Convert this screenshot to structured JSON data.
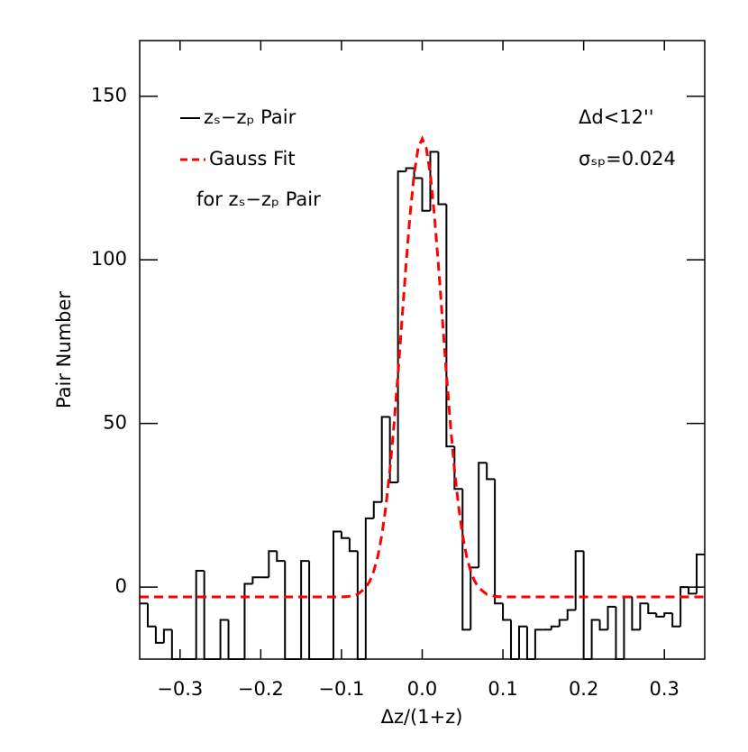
{
  "chart_data": {
    "type": "histogram",
    "xlabel": "Δz/(1+z)",
    "ylabel": "Pair Number",
    "xlim": [
      -0.35,
      0.35
    ],
    "ylim": [
      -22,
      167
    ],
    "xticks": [
      {
        "value": -0.3,
        "label": "−0.3"
      },
      {
        "value": -0.2,
        "label": "−0.2"
      },
      {
        "value": -0.1,
        "label": "−0.1"
      },
      {
        "value": 0,
        "label": "0.0"
      },
      0.1,
      0.2,
      0.3
    ],
    "yticks": [
      0,
      50,
      100,
      150
    ],
    "annotations": [
      "Δd<12''",
      "σₛₚ=0.024",
      "for zₛ−zₚ Pair"
    ],
    "series": [
      {
        "type": "histogram",
        "name": "zₛ−zₚ Pair",
        "color": "#000000",
        "bins": [
          -0.35,
          -0.34,
          -0.33,
          -0.32,
          -0.31,
          -0.3,
          -0.29,
          -0.28,
          -0.27,
          -0.26,
          -0.25,
          -0.24,
          -0.23,
          -0.22,
          -0.21,
          -0.2,
          -0.19,
          -0.18,
          -0.17,
          -0.16,
          -0.15,
          -0.14,
          -0.13,
          -0.12,
          -0.11,
          -0.1,
          -0.09,
          -0.08,
          -0.07,
          -0.06,
          -0.05,
          -0.04,
          -0.03,
          -0.02,
          -0.01,
          0,
          0.01,
          0.02,
          0.03,
          0.04,
          0.05,
          0.06,
          0.07,
          0.08,
          0.09,
          0.1,
          0.11,
          0.12,
          0.13,
          0.14,
          0.15,
          0.16,
          0.17,
          0.18,
          0.19,
          0.2,
          0.21,
          0.22,
          0.23,
          0.24,
          0.25,
          0.26,
          0.27,
          0.28,
          0.29,
          0.3,
          0.31,
          0.32,
          0.33,
          0.34,
          0.35
        ],
        "values": [
          -5,
          -12,
          -17,
          -13,
          -22,
          -22,
          -22,
          5,
          -22,
          -22,
          -10,
          -22,
          -22,
          1,
          3,
          3,
          11,
          8,
          -22,
          -22,
          8,
          -22,
          -22,
          -22,
          17,
          15,
          11,
          -22,
          21,
          26,
          52,
          32,
          127,
          128,
          125,
          115,
          133,
          117,
          43,
          30,
          -13,
          6,
          38,
          33,
          -5,
          -10,
          -22,
          -12,
          -22,
          -13,
          -13,
          -12,
          -10,
          -7,
          11,
          -22,
          -10,
          -13,
          -6,
          -22,
          -3,
          -13,
          -5,
          -8,
          -9,
          -8,
          -12,
          0,
          -2,
          10
        ]
      },
      {
        "type": "line",
        "name": "Gauss Fit",
        "color": "#ff0000",
        "dashed": true,
        "x": [
          -0.35,
          -0.2,
          -0.1,
          -0.09,
          -0.08,
          -0.07,
          -0.065,
          -0.06,
          -0.055,
          -0.05,
          -0.045,
          -0.04,
          -0.035,
          -0.03,
          -0.025,
          -0.02,
          -0.015,
          -0.01,
          -0.005,
          0,
          0.005,
          0.01,
          0.015,
          0.02,
          0.025,
          0.03,
          0.035,
          0.04,
          0.045,
          0.05,
          0.055,
          0.06,
          0.065,
          0.07,
          0.08,
          0.09,
          0.1,
          0.2,
          0.35
        ],
        "values": [
          -3,
          -3,
          -3,
          -2.8,
          -2.2,
          -0.2,
          1.8,
          4.9,
          9.4,
          15.9,
          24.7,
          35.9,
          49.5,
          65.1,
          81.9,
          98.7,
          113.9,
          126.2,
          134.2,
          137,
          134.2,
          126.2,
          113.9,
          98.7,
          81.9,
          65.1,
          49.5,
          35.9,
          24.7,
          15.9,
          9.4,
          4.9,
          1.8,
          -0.2,
          -2.2,
          -2.8,
          -3,
          -3,
          -3
        ]
      }
    ]
  }
}
